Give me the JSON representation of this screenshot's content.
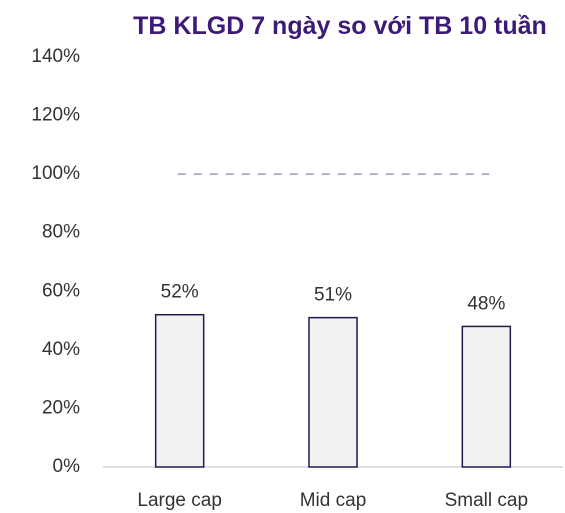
{
  "chart_data": {
    "type": "bar",
    "title": "TB KLGD 7 ngày so với TB 10 tuần",
    "categories": [
      "Large cap",
      "Mid cap",
      "Small cap"
    ],
    "values": [
      52,
      51,
      48
    ],
    "value_labels": [
      "52%",
      "51%",
      "48%"
    ],
    "color": "#f2f2f2",
    "edge_color": "#1f1a4d",
    "title_color": "#3d1a78",
    "ylim": [
      0,
      140
    ],
    "yticks": [
      {
        "value": 0,
        "label": "0%"
      },
      {
        "value": 20,
        "label": "20%"
      },
      {
        "value": 40,
        "label": "40%"
      },
      {
        "value": 60,
        "label": "60%"
      },
      {
        "value": 80,
        "label": "80%"
      },
      {
        "value": 100,
        "label": "100%"
      },
      {
        "value": 120,
        "label": "120%"
      },
      {
        "value": 140,
        "label": "140%"
      }
    ],
    "reference_line": {
      "value": 100,
      "style": "dashed",
      "color": "#b3aed3"
    },
    "grid": false
  }
}
